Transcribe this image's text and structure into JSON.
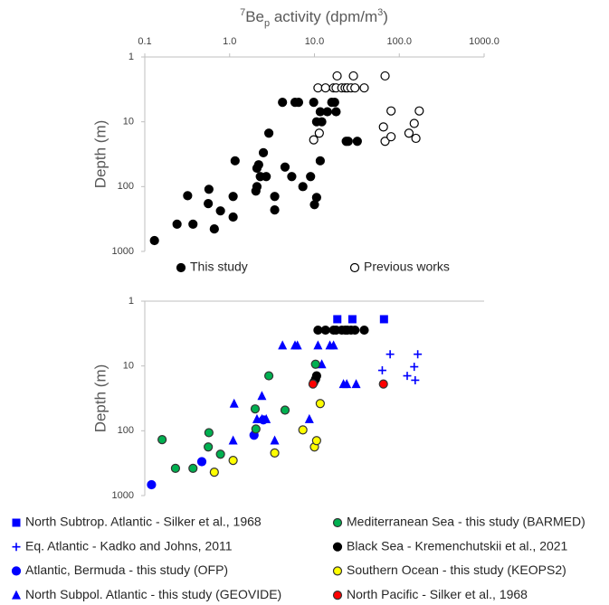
{
  "chart_data": [
    {
      "type": "scatter",
      "xlabel": [
        "7",
        "Be",
        "p",
        " activity (dpm/m",
        "3",
        ")"
      ],
      "ylabel": "Depth (m)",
      "xscale": "log",
      "yscale": "log",
      "y_inverted": true,
      "xlim": [
        0.1,
        1000
      ],
      "ylim": [
        1,
        1000
      ],
      "xticks": [
        0.1,
        {
          "value": 1,
          "label": "1.0"
        },
        {
          "value": 10,
          "label": "10.0"
        },
        {
          "value": 100,
          "label": "100.0"
        },
        {
          "value": 1000,
          "label": "1000.0"
        }
      ],
      "yticks": [
        1,
        10,
        100,
        1000
      ],
      "legend": "bottom",
      "series": [
        {
          "name": "This study",
          "color": "#000000",
          "edgecolor": "#000000",
          "marker": "circle",
          "x": [
            0.13,
            0.24,
            0.37,
            0.32,
            0.57,
            0.56,
            0.66,
            0.78,
            1.1,
            1.1,
            1.16,
            2.04,
            2.1,
            2.1,
            2.2,
            2.3,
            2.5,
            2.7,
            2.9,
            3.4,
            3.4,
            4.5,
            5.4,
            7.3,
            9.0,
            10.0,
            10.6,
            11.7,
            4.2,
            5.9,
            6.5,
            9.8,
            10.6,
            12.2,
            11.7,
            14.2,
            16,
            17.3,
            18,
            23.7,
            25,
            32
          ],
          "values": [
            680,
            380,
            380,
            138,
            110,
            183,
            450,
            237,
            142,
            295,
            40,
            117,
            100,
            52,
            46,
            70,
            30,
            70,
            15,
            142,
            229,
            50,
            70,
            100,
            70,
            190,
            147,
            40,
            5,
            5,
            5,
            5,
            10,
            10,
            7,
            7,
            5,
            5,
            7,
            20,
            20,
            20
          ]
        },
        {
          "name": "Previous works",
          "color": "#ffffff",
          "edgecolor": "#000000",
          "marker": "circle",
          "x": [
            18.5,
            28.8,
            68,
            11,
            13.5,
            16.8,
            18,
            21,
            23,
            24.5,
            27,
            30,
            38.6,
            11.4,
            9.8,
            80,
            65,
            68,
            80,
            130,
            150,
            157,
            172
          ],
          "values": [
            1.96,
            1.96,
            1.96,
            3,
            3,
            3,
            3,
            3,
            3,
            3,
            3,
            3,
            3,
            15,
            19,
            6.8,
            12,
            20,
            17,
            15,
            10.6,
            18,
            6.8
          ]
        }
      ]
    },
    {
      "type": "scatter",
      "ylabel": "Depth (m)",
      "xscale": "log",
      "yscale": "log",
      "y_inverted": true,
      "xlim": [
        0.1,
        1000
      ],
      "ylim": [
        1,
        1000
      ],
      "yticks": [
        1,
        10,
        100,
        1000
      ],
      "legend": "bottom",
      "series": [
        {
          "name": "North Subtrop. Atlantic - Silker et al., 1968",
          "color": "#0000ff",
          "marker": "square",
          "x": [
            18.6,
            28,
            66
          ],
          "values": [
            1.9,
            1.9,
            1.9
          ]
        },
        {
          "name": "Eq. Atlantic - Kadko and Johns, 2011",
          "color": "#0000ff",
          "marker": "plus",
          "x": [
            63,
            78,
            124,
            150,
            165,
            154
          ],
          "values": [
            11.7,
            6.6,
            14.2,
            10.3,
            6.6,
            16.6
          ]
        },
        {
          "name": "Atlantic, Bermuda - this study (OFP)",
          "color": "#0000ff",
          "marker": "circle",
          "x": [
            0.12,
            0.47,
            1.94,
            2.5
          ],
          "values": [
            680,
            300,
            117,
            68
          ]
        },
        {
          "name": "North Subpol. Atlantic - this study (GEOVIDE)",
          "color": "#0000ff",
          "marker": "triangle",
          "x": [
            1.13,
            2.4,
            2.1,
            2.4,
            2.7,
            1.1,
            3.4,
            8.7,
            4.2,
            5.9,
            6.3,
            11,
            15.2,
            16.8,
            12.2,
            22,
            24,
            31
          ],
          "values": [
            38,
            29,
            66,
            66,
            66,
            141,
            141,
            66,
            4.8,
            4.8,
            4.8,
            4.8,
            4.8,
            4.8,
            9.4,
            19,
            19,
            19
          ]
        },
        {
          "name": "Mediterranean Sea - this study (BARMED)",
          "color": "#00b050",
          "marker": "circle",
          "x": [
            0.16,
            0.57,
            0.56,
            0.78,
            0.23,
            0.37,
            2.0,
            2.9,
            4.5,
            2.04,
            10.3
          ],
          "values": [
            137,
            107,
            178,
            230,
            380,
            380,
            46,
            14.2,
            48,
            94,
            9.4
          ]
        },
        {
          "name": "Black Sea - Kremenchutskii et al., 2021",
          "color": "#000000",
          "edgecolor": "#000000",
          "marker": "circle",
          "x": [
            11,
            13.5,
            16.8,
            18,
            21,
            23,
            24.5,
            27,
            30,
            38.6,
            10.3,
            10.6,
            9.8
          ],
          "values": [
            2.8,
            2.8,
            2.8,
            2.8,
            2.8,
            2.8,
            2.8,
            2.8,
            2.8,
            2.8,
            16,
            14.2,
            18
          ]
        },
        {
          "name": "Southern Ocean - this study (KEOPS2)",
          "color": "#ffff00",
          "marker": "circle",
          "x": [
            0.66,
            1.1,
            3.4,
            7.3,
            10,
            10.6,
            11.7
          ],
          "values": [
            435,
            287,
            220,
            97,
            178,
            142,
            38
          ]
        },
        {
          "name": "North Pacific - Silker et al., 1968",
          "color": "#ff0000",
          "marker": "circle",
          "x": [
            9.6,
            65
          ],
          "values": [
            19,
            19
          ]
        }
      ]
    }
  ]
}
